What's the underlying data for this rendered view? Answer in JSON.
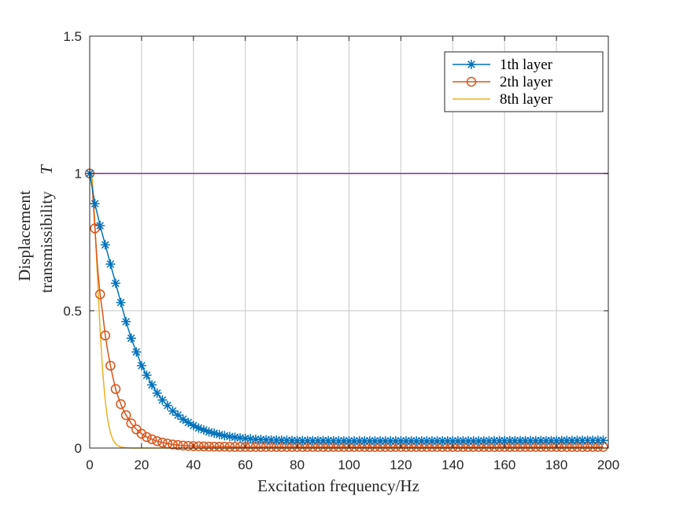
{
  "chart_data": {
    "type": "line",
    "title": "",
    "xlabel": "Excitation frequency/Hz",
    "ylabel_line1": "Displacement",
    "ylabel_line2": "transmissibility",
    "ylabel_symbol": "T",
    "xlim": [
      0,
      200
    ],
    "ylim": [
      0,
      1.5
    ],
    "xticks": [
      "0",
      "20",
      "40",
      "60",
      "80",
      "100",
      "120",
      "140",
      "160",
      "180",
      "200"
    ],
    "yticks": [
      "0",
      "0.5",
      "1",
      "1.5"
    ],
    "grid": true,
    "legend_position": "top-right",
    "series": [
      {
        "name": "1th layer",
        "color": "#0072BD",
        "marker": "asterisk",
        "x": [
          0,
          2,
          4,
          6,
          8,
          10,
          12,
          14,
          16,
          18,
          20,
          22,
          24,
          26,
          28,
          30,
          32,
          34,
          36,
          38,
          40,
          42,
          44,
          46,
          48,
          50,
          52,
          54,
          56,
          58,
          60,
          64,
          68,
          72,
          76,
          80,
          90,
          100,
          110,
          120,
          130,
          140,
          150,
          160,
          170,
          180,
          190,
          198
        ],
        "y": [
          1.0,
          0.89,
          0.81,
          0.74,
          0.67,
          0.6,
          0.53,
          0.46,
          0.4,
          0.35,
          0.3,
          0.265,
          0.23,
          0.2,
          0.175,
          0.155,
          0.135,
          0.12,
          0.105,
          0.093,
          0.082,
          0.073,
          0.066,
          0.059,
          0.054,
          0.049,
          0.045,
          0.042,
          0.039,
          0.037,
          0.035,
          0.032,
          0.03,
          0.029,
          0.028,
          0.027,
          0.027,
          0.026,
          0.026,
          0.026,
          0.026,
          0.026,
          0.026,
          0.027,
          0.027,
          0.027,
          0.028,
          0.028
        ]
      },
      {
        "name": "2th layer",
        "color": "#D95319",
        "marker": "circle",
        "x": [
          0,
          1,
          2,
          3,
          4,
          5,
          6,
          7,
          8,
          9,
          10,
          11,
          12,
          13,
          14,
          16,
          18,
          20,
          22,
          24,
          26,
          28,
          30,
          32,
          34,
          36,
          38,
          40,
          44,
          48,
          52,
          56,
          60,
          70,
          80,
          90,
          100,
          120,
          140,
          160,
          180,
          198
        ],
        "y": [
          1.0,
          0.95,
          0.8,
          0.66,
          0.56,
          0.49,
          0.41,
          0.35,
          0.3,
          0.255,
          0.215,
          0.185,
          0.16,
          0.138,
          0.12,
          0.09,
          0.068,
          0.052,
          0.04,
          0.032,
          0.025,
          0.02,
          0.016,
          0.013,
          0.011,
          0.009,
          0.008,
          0.007,
          0.006,
          0.005,
          0.005,
          0.004,
          0.004,
          0.004,
          0.004,
          0.004,
          0.004,
          0.004,
          0.004,
          0.004,
          0.004,
          0.004
        ]
      },
      {
        "name": "8th layer",
        "color": "#EDB120",
        "marker": "none",
        "x": [
          0,
          1,
          2,
          3,
          4,
          5,
          6,
          7,
          8,
          9,
          10,
          11,
          12,
          14,
          16,
          20,
          30,
          60,
          100,
          150,
          200
        ],
        "y": [
          1.0,
          0.98,
          0.82,
          0.62,
          0.43,
          0.28,
          0.17,
          0.1,
          0.055,
          0.03,
          0.015,
          0.008,
          0.004,
          0.001,
          0.0,
          0.0,
          0.0,
          0.0,
          0.0,
          0.0,
          0.0
        ]
      },
      {
        "name": "",
        "color": "#7E2F8E",
        "marker": "none",
        "x": [
          0,
          200
        ],
        "y": [
          1,
          1
        ]
      }
    ]
  }
}
